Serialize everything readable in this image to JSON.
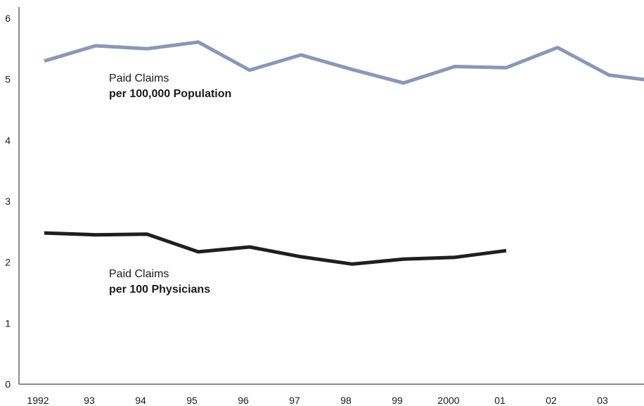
{
  "chart_data": {
    "type": "line",
    "categories": [
      "1992",
      "93",
      "94",
      "95",
      "96",
      "97",
      "98",
      "99",
      "2000",
      "01",
      "02",
      "03",
      ""
    ],
    "ylim": [
      0,
      6
    ],
    "yticks": [
      "0",
      "1",
      "2",
      "3",
      "4",
      "5",
      "6"
    ],
    "grid": false,
    "series": [
      {
        "label_line1": "Paid Claims",
        "label_line2": "per 100,000 Population",
        "color": "#8b97b6",
        "values": [
          5.3,
          5.55,
          5.5,
          5.61,
          5.15,
          5.4,
          5.16,
          4.94,
          5.21,
          5.19,
          5.52,
          5.07,
          4.96
        ]
      },
      {
        "label_line1": "Paid Claims",
        "label_line2": "per 100 Physicians",
        "color": "#1f1f1f",
        "values": [
          2.48,
          2.45,
          2.46,
          2.17,
          2.25,
          2.09,
          1.97,
          2.05,
          2.08,
          2.19,
          null,
          null,
          null
        ]
      }
    ]
  }
}
